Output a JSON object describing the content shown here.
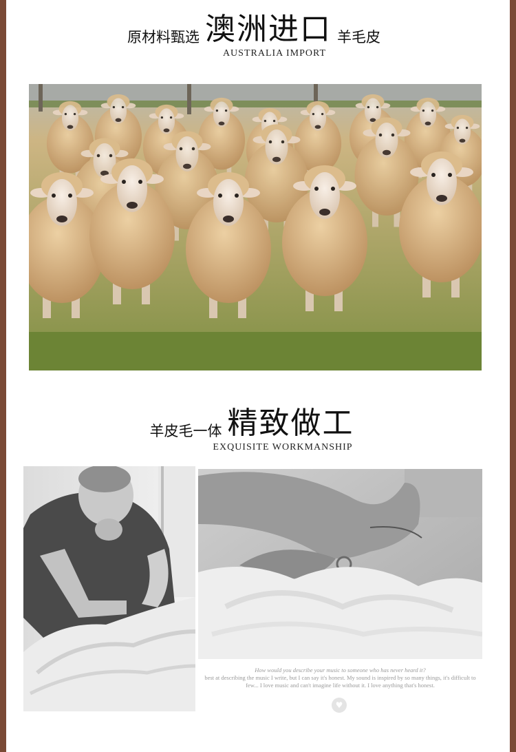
{
  "section1": {
    "prefix": "原材料甄选",
    "title": "澳洲进口",
    "suffix": "羊毛皮",
    "subtitle": "AUSTRALIA IMPORT"
  },
  "section2": {
    "prefix": "羊皮毛一体",
    "title": "精致做工",
    "subtitle": "EXQUISITE WORKMANSHIP"
  },
  "quote": {
    "line1": "How would you describe your music to someone who has never heard it?",
    "line2": "best at describing the music I write, but I can say it's honest. My sound is inspired by so many things, it's difficult to",
    "line3": "few... I love music and can't imagine life without it. I love anything that's honest."
  },
  "icons": {
    "quote_icon": "heart-icon"
  },
  "colors": {
    "frame": "#7a4a36",
    "text": "#111111",
    "wool": "#d2ab7e",
    "grass": "#6e8a3a"
  }
}
